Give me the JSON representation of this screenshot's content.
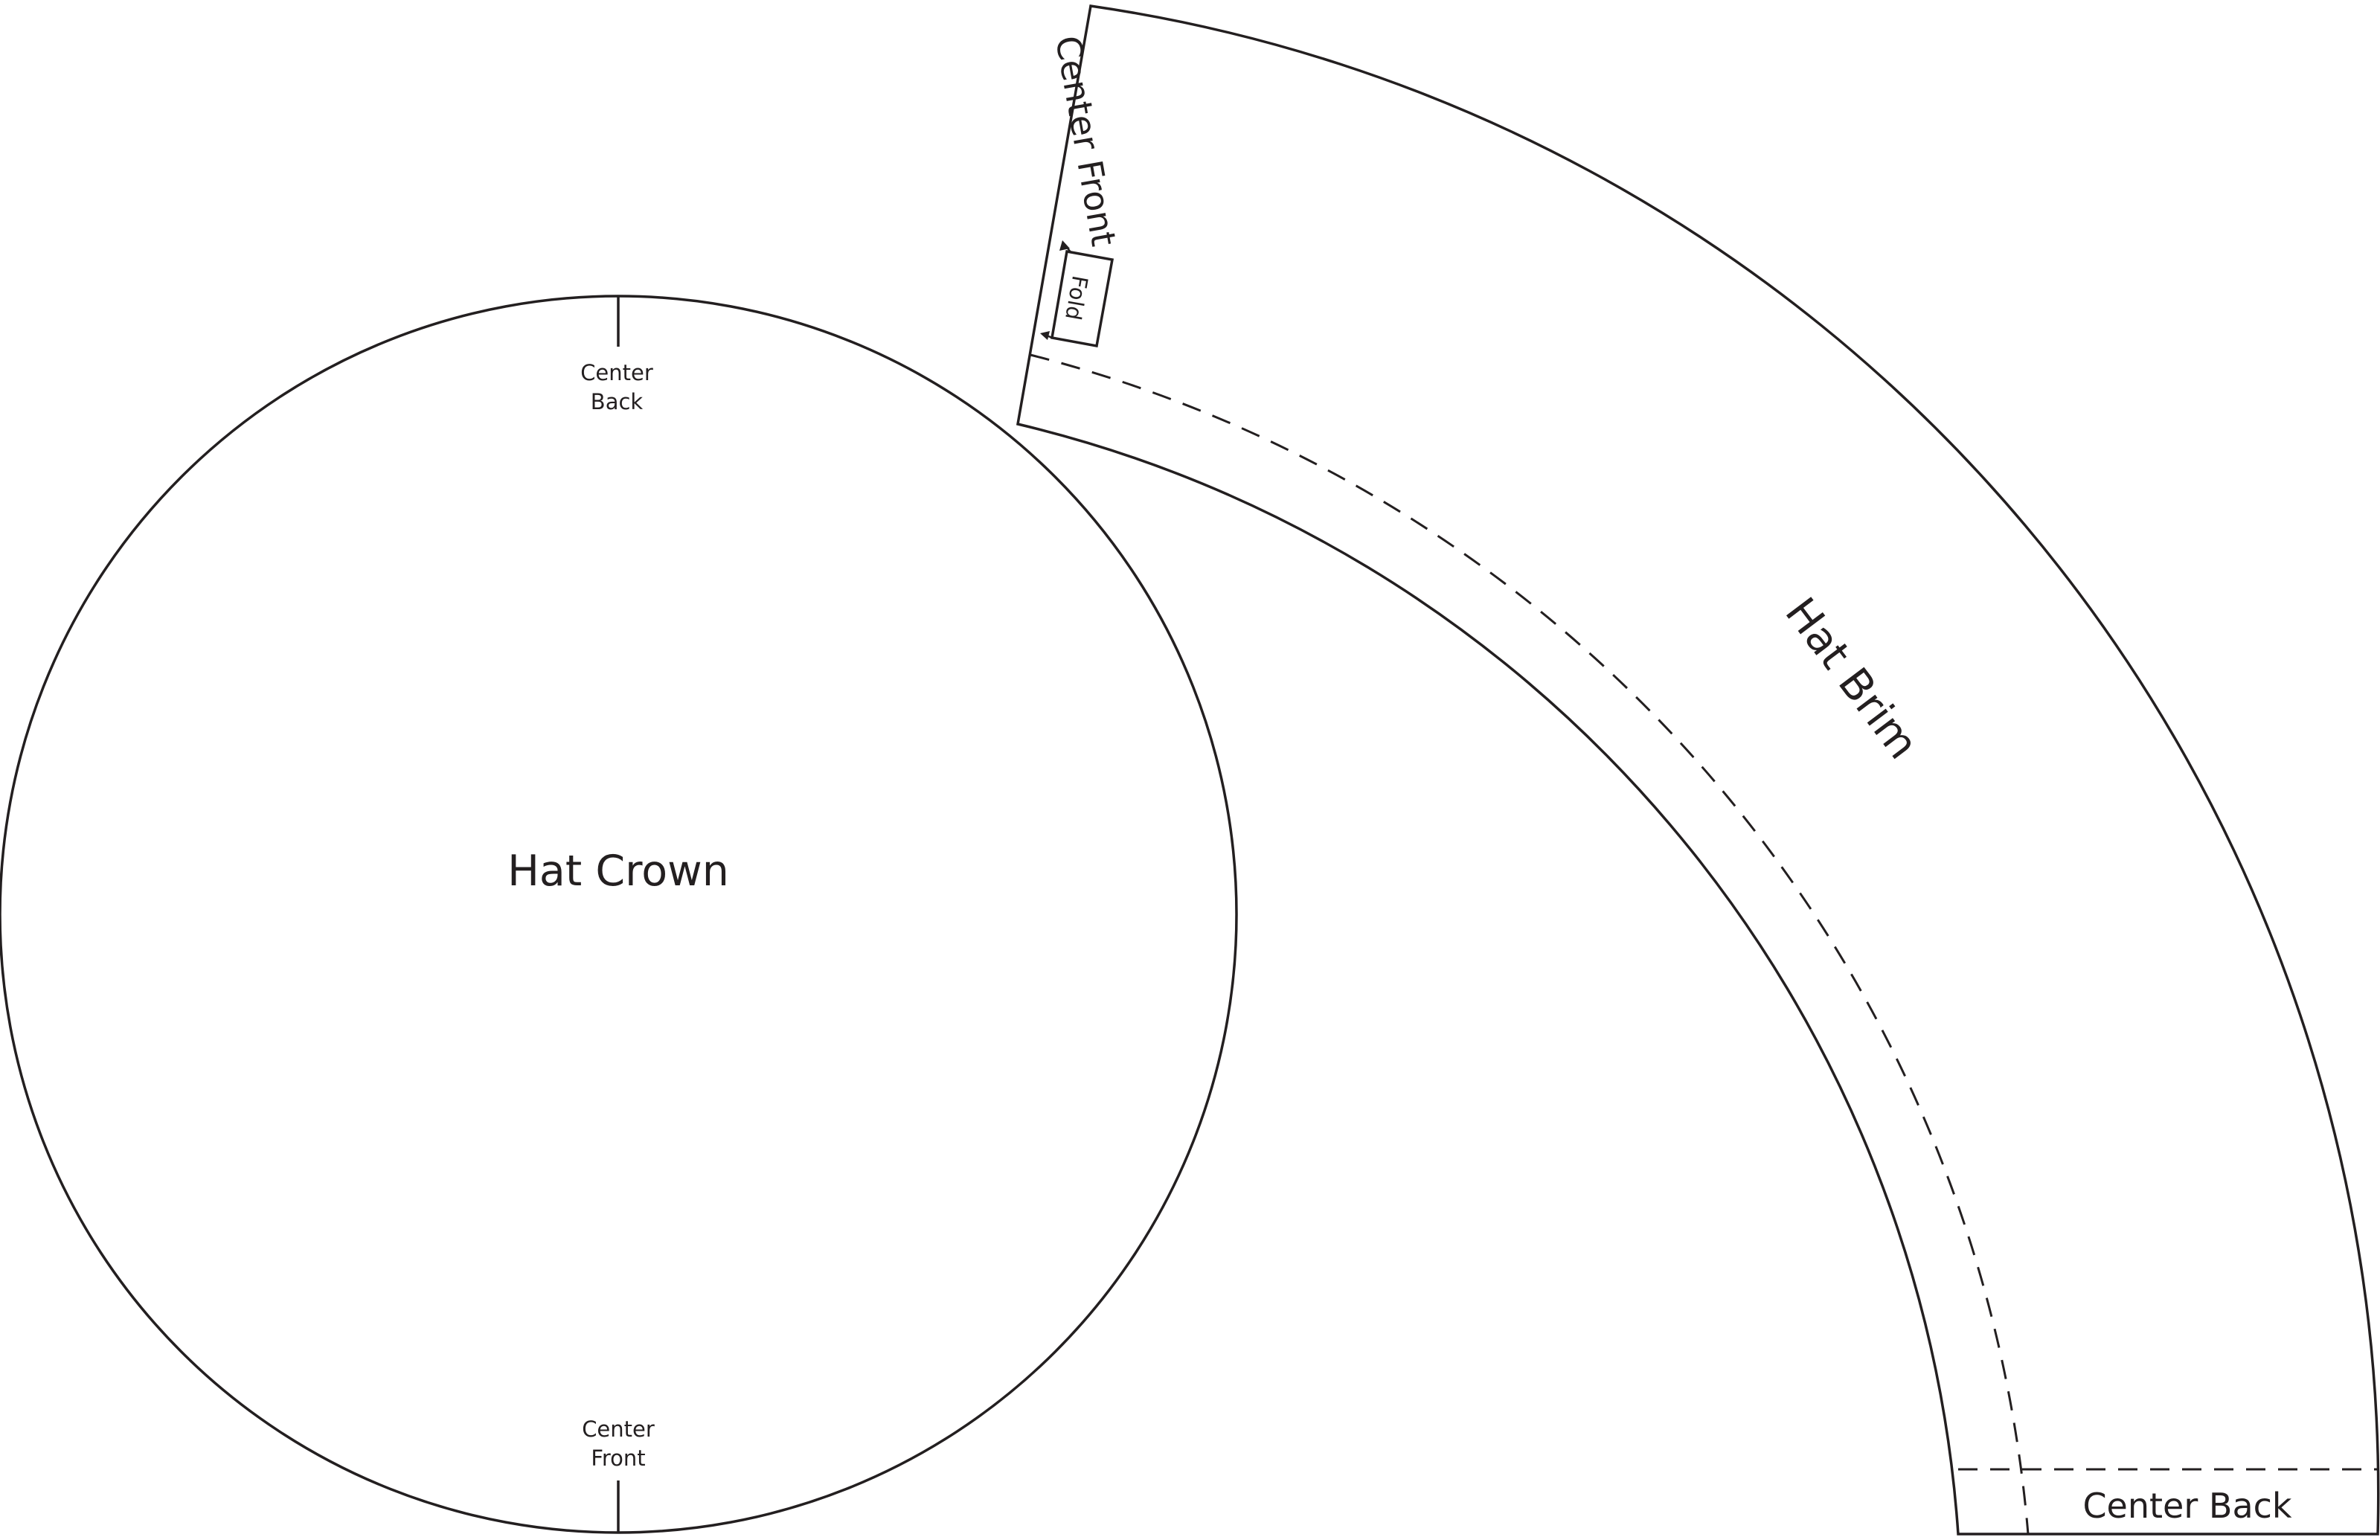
{
  "crown": {
    "title": "Hat Crown",
    "center_back_line1": "Center",
    "center_back_line2": "Back",
    "center_front_line1": "Center",
    "center_front_line2": "Front"
  },
  "brim": {
    "title": "Hat Brim",
    "center_front_label": "Center Front",
    "fold_label": "Fold",
    "center_back_label": "Center Back"
  },
  "colors": {
    "line": "#231f20",
    "background": "#ffffff"
  }
}
